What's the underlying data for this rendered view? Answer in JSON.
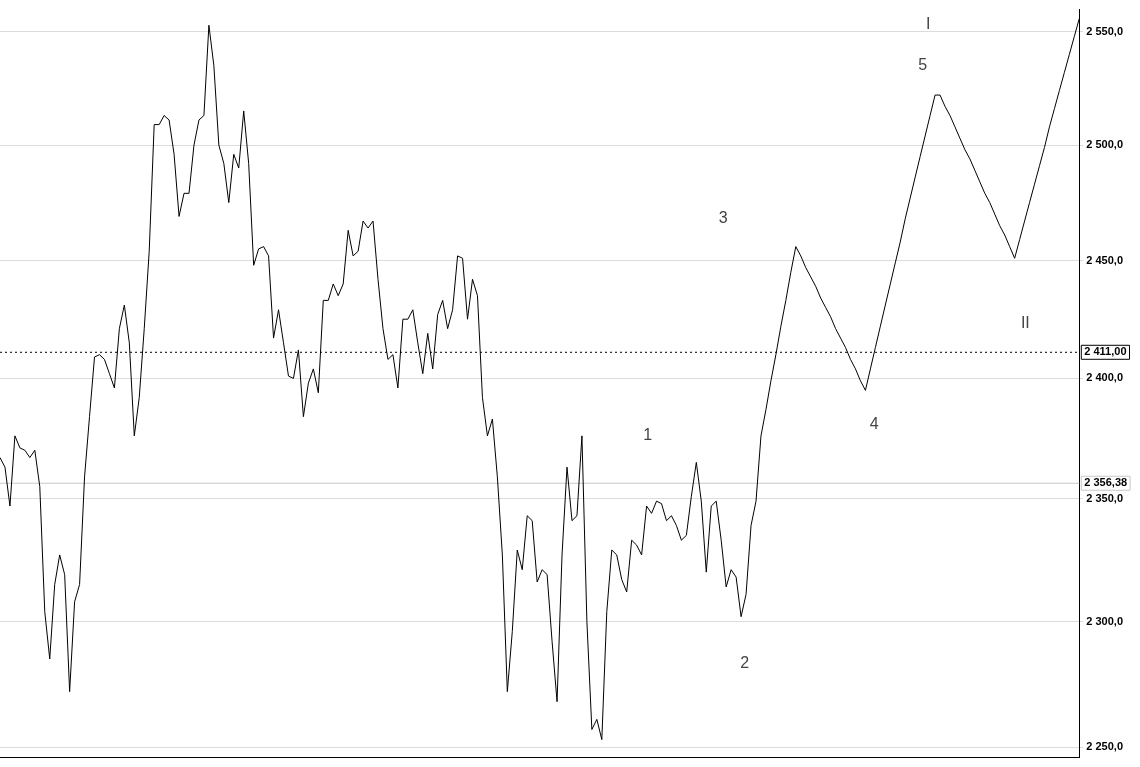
{
  "chart_data": {
    "type": "line",
    "log": true,
    "grid": "y",
    "tick_labels": "y",
    "marker": "none",
    "line_style": "solid",
    "categories": [
      null,
      null,
      null,
      null,
      null,
      null,
      null,
      null,
      null,
      null,
      null,
      null,
      null,
      null,
      null,
      null,
      null,
      null,
      null,
      null,
      null,
      null,
      null,
      null,
      null,
      null,
      null,
      null,
      null,
      null,
      null,
      null,
      null,
      null,
      null,
      null,
      null,
      null,
      null,
      null,
      null,
      null,
      null,
      null,
      null,
      null,
      null,
      null,
      null,
      null,
      null,
      null,
      null,
      null,
      null,
      null,
      null,
      null,
      null,
      null,
      null,
      null,
      null,
      null,
      null,
      null,
      null,
      null,
      null,
      null,
      null,
      null,
      null,
      null,
      null,
      null,
      null,
      null,
      null,
      null,
      null,
      null,
      null,
      null,
      null,
      null,
      null,
      null,
      null,
      null,
      null,
      null,
      null,
      null,
      null,
      null,
      null,
      null,
      null,
      null,
      null,
      null,
      null,
      null,
      null,
      null,
      null,
      null,
      null,
      null,
      null,
      null,
      null,
      null,
      null,
      null,
      null,
      null,
      null,
      null,
      null,
      null,
      null,
      null,
      null,
      null,
      null,
      null,
      null,
      null,
      null,
      null,
      null,
      null,
      null,
      null,
      null,
      null,
      null,
      null,
      null,
      null,
      null,
      null,
      null,
      null,
      null,
      null,
      null,
      null,
      null,
      null,
      null,
      null,
      null,
      null,
      null,
      null,
      null,
      null,
      null,
      null,
      null,
      null,
      null,
      null,
      null,
      null,
      null,
      null,
      null,
      null,
      null,
      null,
      null,
      null,
      null,
      null,
      null,
      null,
      null,
      null,
      null,
      null,
      null,
      null,
      null,
      null,
      null,
      null,
      null,
      null,
      null,
      null,
      null,
      null,
      null,
      null,
      null,
      null,
      null,
      null,
      null,
      null,
      null,
      null,
      null,
      null,
      null,
      null,
      null,
      null,
      null,
      null,
      null,
      null,
      null,
      null
    ],
    "ylim": [
      2246,
      2560
    ],
    "yticks": [
      {
        "value": 2250,
        "label": "2 250,0"
      },
      {
        "value": 2300,
        "label": "2 300,0"
      },
      {
        "value": 2350,
        "label": "2 350,0"
      },
      {
        "value": 2400,
        "label": "2 400,0"
      },
      {
        "value": 2450,
        "label": "2 450,0"
      },
      {
        "value": 2500,
        "label": "2 500,0"
      },
      {
        "value": 2550,
        "label": "2 550,0"
      }
    ],
    "series": [
      {
        "color": "#000000",
        "values": [
          2367,
          2363,
          2347,
          2376,
          2371,
          2370,
          2367,
          2370,
          2355,
          2304,
          2285,
          2315,
          2327,
          2319,
          2272,
          2308,
          2315,
          2359,
          2384,
          2409,
          2410,
          2408,
          2402,
          2396,
          2421,
          2431,
          2415,
          2376,
          2392,
          2421,
          2454,
          2509,
          2509,
          2513,
          2511,
          2496,
          2469,
          2479,
          2479,
          2500,
          2511,
          2513,
          2553,
          2535,
          2500,
          2492,
          2475,
          2496,
          2490,
          2515,
          2492,
          2448,
          2455,
          2456,
          2452,
          2417,
          2429,
          2415,
          2401,
          2400,
          2412,
          2384,
          2398,
          2404,
          2394,
          2433,
          2433,
          2440,
          2435,
          2440,
          2463,
          2452,
          2454,
          2467,
          2464,
          2467,
          2442,
          2421,
          2408,
          2410,
          2396,
          2425,
          2425,
          2429,
          2415,
          2402,
          2419,
          2404,
          2427,
          2433,
          2421,
          2429,
          2452,
          2451,
          2425,
          2442,
          2435,
          2392,
          2376,
          2383,
          2359,
          2327,
          2272,
          2296,
          2329,
          2321,
          2343,
          2341,
          2316,
          2321,
          2319,
          2292,
          2268,
          2327,
          2363,
          2341,
          2343,
          2376,
          2300,
          2257,
          2261,
          2253,
          2304,
          2329,
          2327,
          2317,
          2312,
          2333,
          2331,
          2327,
          2347,
          2344,
          2349,
          2348,
          2341,
          2343,
          2339,
          2333,
          2335,
          2351,
          2365,
          2349,
          2320,
          2347,
          2349,
          2333,
          2314,
          2321,
          2318,
          2302,
          2311,
          2339,
          2349,
          2376,
          2387,
          2399,
          2410,
          2422,
          2433,
          2445,
          2456,
          2452,
          2447,
          2443,
          2439,
          2434,
          2430,
          2426,
          2421,
          2417,
          2413,
          2408,
          2404,
          2399,
          2395,
          2404,
          2413,
          2422,
          2431,
          2440,
          2449,
          2458,
          2468,
          2477,
          2486,
          2495,
          2504,
          2513,
          2522,
          2522,
          2517,
          2513,
          2508,
          2503,
          2498,
          2494,
          2489,
          2484,
          2479,
          2475,
          2470,
          2465,
          2461,
          2456,
          2451,
          2459,
          2467,
          2475,
          2483,
          2491,
          2499,
          2508,
          2516,
          2524,
          2532,
          2540,
          2548,
          2556
        ]
      }
    ],
    "ref_lines": [
      {
        "axis": "y",
        "value": 2356.38,
        "label": "2 356,38",
        "color": "#c8c8c8"
      },
      {
        "axis": "y",
        "value": 2411,
        "label": "2 411,00",
        "color": "#000000",
        "line_style": "dotted"
      }
    ],
    "annotations": [
      "1",
      "2",
      "3",
      "4",
      "5",
      "I",
      "II"
    ]
  }
}
